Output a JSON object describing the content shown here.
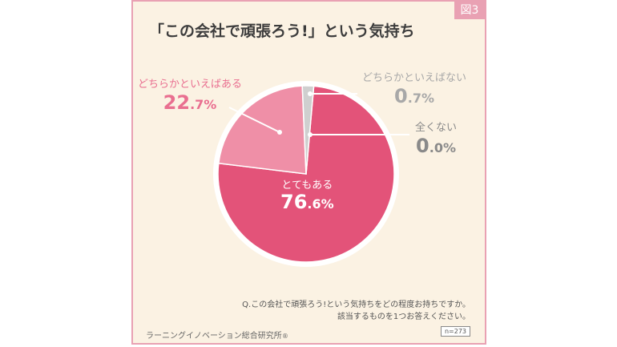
{
  "figure_label": "図3",
  "chart_data": {
    "type": "pie",
    "title": "「この会社で頑張ろう!」という気持ち",
    "slices": [
      {
        "label": "とてもある",
        "value_int": "76",
        "value_dec": ".6",
        "unit": "%",
        "value": 76.6,
        "color": "#e35379"
      },
      {
        "label": "どちらかといえばある",
        "value_int": "22",
        "value_dec": ".7",
        "unit": "%",
        "value": 22.7,
        "color": "#ef8fa7"
      },
      {
        "label": "どちらかといえばない",
        "value_int": "0",
        "value_dec": ".7",
        "unit": "%",
        "value": 0.7,
        "color": "#cfcfcf"
      },
      {
        "label": "全くない",
        "value_int": "0",
        "value_dec": ".0",
        "unit": "%",
        "value": 0.0,
        "color": "#9a9a9a"
      }
    ]
  },
  "question": {
    "line1": "Q.この会社で頑張ろう!という気持ちをどの程度お持ちですか。",
    "line2": "該当するものを1つお答えください。"
  },
  "publisher": "ラーニングイノベーション総合研究所",
  "publisher_mark": "®",
  "sample_size": "n=273"
}
